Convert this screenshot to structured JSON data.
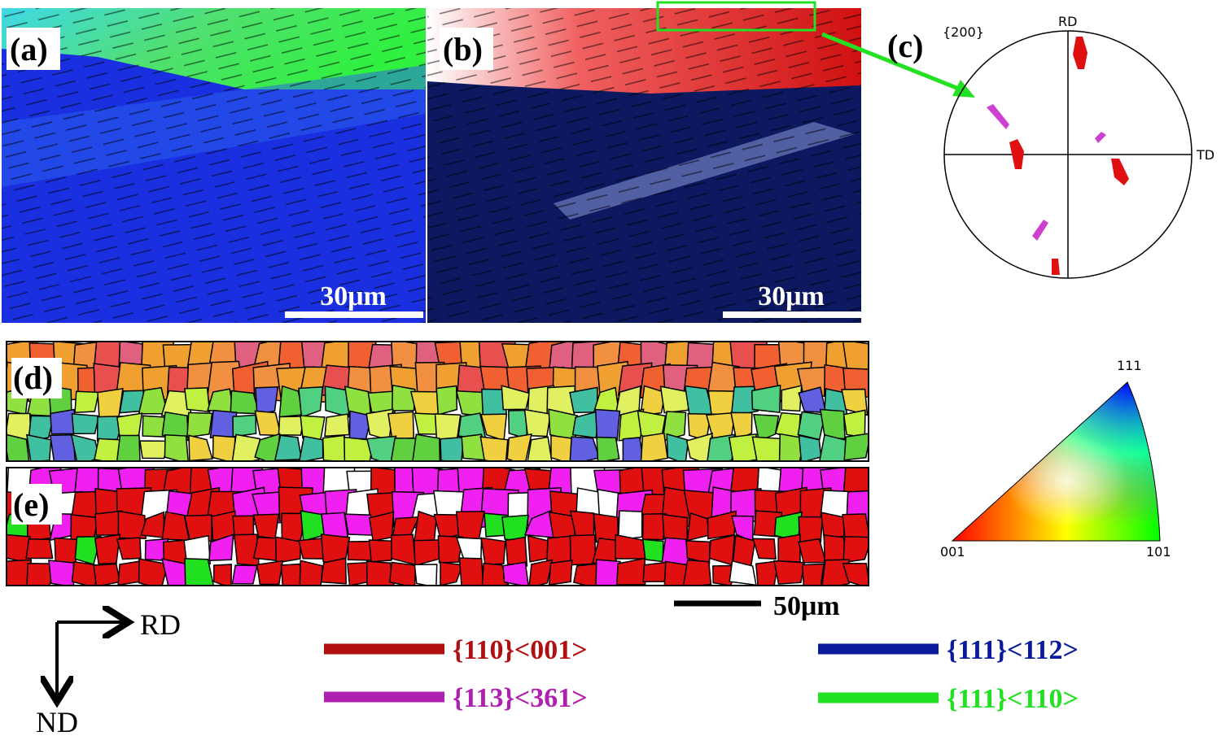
{
  "panels": {
    "a": {
      "label": "(a)",
      "scale_bar": "30μm"
    },
    "b": {
      "label": "(b)",
      "scale_bar": "30μm"
    },
    "c": {
      "label": "(c)",
      "plane": "{200}",
      "axis_top": "RD",
      "axis_right": "TD"
    },
    "d": {
      "label": "(d)"
    },
    "e": {
      "label": "(e)"
    }
  },
  "scale_bar_de": "50μm",
  "ipf": {
    "top": "111",
    "left": "001",
    "right": "101"
  },
  "axes": {
    "x": "RD",
    "y": "ND"
  },
  "legend": [
    {
      "label": "{110}<001>",
      "color": "#b01010"
    },
    {
      "label": "{113}<361>",
      "color": "#b020b0"
    },
    {
      "label": "{111}<112>",
      "color": "#0a1a9a"
    },
    {
      "label": "{111}<110>",
      "color": "#22e022"
    }
  ]
}
